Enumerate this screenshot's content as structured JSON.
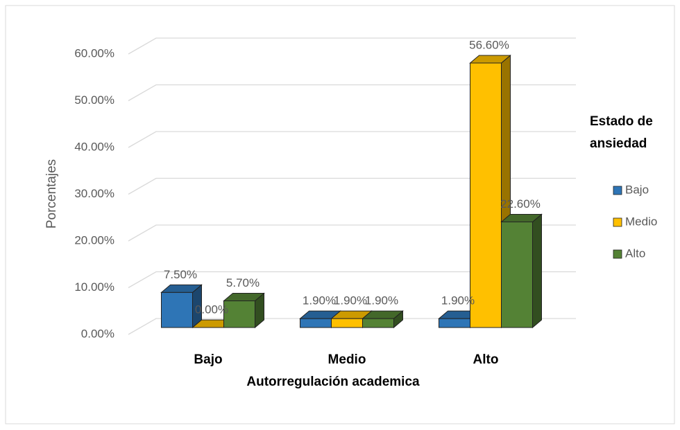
{
  "chart_data": {
    "type": "bar3d",
    "x_label": "Autorregulación academica",
    "y_label": "Porcentajes",
    "legend_title": "Estado de ansiedad",
    "legend": "right",
    "grid": true,
    "categories": [
      "Bajo",
      "Medio",
      "Alto"
    ],
    "ylim": [
      0,
      60
    ],
    "yticks": [
      {
        "value": 0,
        "label": "0.00%"
      },
      {
        "value": 10,
        "label": "10.00%"
      },
      {
        "value": 20,
        "label": "20.00%"
      },
      {
        "value": 30,
        "label": "30.00%"
      },
      {
        "value": 40,
        "label": "40.00%"
      },
      {
        "value": 50,
        "label": "50.00%"
      },
      {
        "value": 60,
        "label": "60.00%"
      }
    ],
    "series": [
      {
        "name": "Bajo",
        "color": "#2e75b6",
        "values": [
          7.5,
          1.9,
          1.9
        ],
        "value_labels": [
          "7.50%",
          "1.90%",
          "1.90%"
        ]
      },
      {
        "name": "Medio",
        "color": "#ffc000",
        "values": [
          0,
          1.9,
          56.6
        ],
        "value_labels": [
          "0.00%",
          "1.90%",
          "56.60%"
        ]
      },
      {
        "name": "Alto",
        "color": "#548235",
        "values": [
          5.7,
          1.9,
          22.6
        ],
        "value_labels": [
          "5.70%",
          "1.90%",
          "22.60%"
        ]
      }
    ]
  }
}
